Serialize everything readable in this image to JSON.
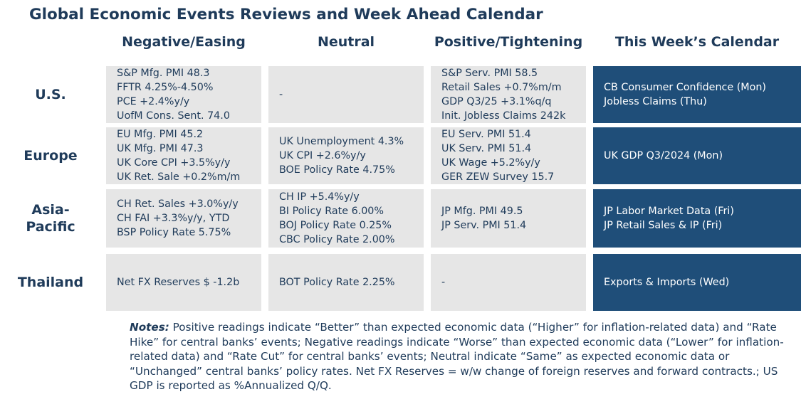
{
  "title": "Global Economic Events Reviews and Week Ahead Calendar",
  "columns": [
    "Negative/Easing",
    "Neutral",
    "Positive/Tightening",
    "This Week’s Calendar"
  ],
  "rows": [
    {
      "label": "U.S.",
      "negative": [
        "S&P Mfg. PMI 48.3",
        "FFTR 4.25%-4.50%",
        "PCE +2.4%y/y",
        "UofM Cons. Sent. 74.0"
      ],
      "neutral": [
        "-"
      ],
      "positive": [
        "S&P Serv. PMI 58.5",
        "Retail Sales +0.7%m/m",
        "GDP Q3/25 +3.1%q/q",
        "Init. Jobless Claims 242k"
      ],
      "calendar": [
        "CB Consumer Confidence (Mon)",
        "Jobless Claims (Thu)"
      ]
    },
    {
      "label": "Europe",
      "negative": [
        "EU Mfg. PMI 45.2",
        "UK Mfg. PMI 47.3",
        "UK Core CPI +3.5%y/y",
        "UK Ret. Sale +0.2%m/m"
      ],
      "neutral": [
        "UK Unemployment 4.3%",
        "UK CPI +2.6%y/y",
        "BOE Policy Rate 4.75%"
      ],
      "positive": [
        "EU Serv. PMI 51.4",
        "UK Serv. PMI 51.4",
        "UK Wage +5.2%y/y",
        "GER ZEW Survey 15.7"
      ],
      "calendar": [
        "UK GDP Q3/2024 (Mon)"
      ]
    },
    {
      "label": "Asia-Pacific",
      "label_lines": [
        "Asia-",
        "Pacific"
      ],
      "negative": [
        "CH Ret. Sales +3.0%y/y",
        "CH FAI +3.3%y/y, YTD",
        "BSP Policy Rate 5.75%"
      ],
      "neutral": [
        "CH IP +5.4%y/y",
        "BI Policy Rate 6.00%",
        "BOJ Policy Rate 0.25%",
        "CBC Policy Rate 2.00%"
      ],
      "positive": [
        "JP Mfg. PMI 49.5",
        "JP Serv. PMI 51.4"
      ],
      "calendar": [
        "JP Labor Market Data (Fri)",
        "JP Retail Sales & IP (Fri)"
      ]
    },
    {
      "label": "Thailand",
      "negative": [
        "Net FX Reserves $ -1.2b"
      ],
      "neutral": [
        "BOT Policy Rate 2.25%"
      ],
      "positive": [
        "-"
      ],
      "calendar": [
        "Exports & Imports (Wed)"
      ]
    }
  ],
  "notes": {
    "label": "Notes:",
    "text": " Positive readings indicate “Better” than expected economic data (“Higher” for inflation-related data) and “Rate Hike” for central banks’ events; Negative readings indicate “Worse” than expected economic data (“Lower” for inflation-related data) and “Rate Cut” for central banks’ events; Neutral indicate “Same” as expected economic data or “Unchanged” central banks’ policy rates. Net FX Reserves = w/w change of foreign reserves and forward contracts.; US GDP is reported as %Annualized Q/Q."
  },
  "colors": {
    "text": "#1f3b5a",
    "cell_bg": "#e6e6e6",
    "calendar_bg": "#1f4e79",
    "calendar_text": "#ffffff"
  }
}
